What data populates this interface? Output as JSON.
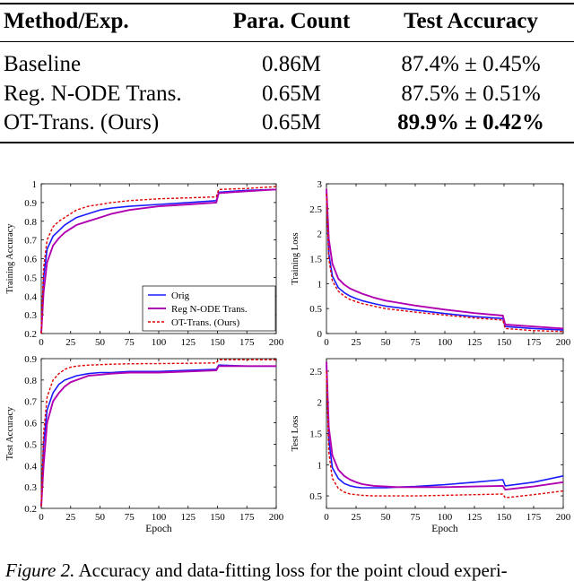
{
  "table": {
    "headers": [
      "Method/Exp.",
      "Para. Count",
      "Test Accuracy"
    ],
    "rows": [
      {
        "method": "Baseline",
        "params": "0.86M",
        "accuracy": "87.4% ± 0.45%",
        "bold": false
      },
      {
        "method": "Reg. N-ODE Trans.",
        "params": "0.65M",
        "accuracy": "87.5% ± 0.51%",
        "bold": false
      },
      {
        "method": "OT-Trans. (Ours)",
        "params": "0.65M",
        "accuracy": "89.9% ± 0.42%",
        "bold": true
      }
    ]
  },
  "caption": {
    "label": "Figure 2.",
    "text": " Accuracy and data-fitting loss for the point cloud experi-"
  },
  "colors": {
    "orig": "#1a1aff",
    "reg": "#b000b0",
    "ot": "#e00000"
  },
  "chart_data": [
    {
      "type": "line",
      "title": "",
      "xlabel": "",
      "ylabel": "Training Accuracy",
      "xlim": [
        0,
        200
      ],
      "ylim": [
        0.2,
        1
      ],
      "xticks": [
        "0",
        "25",
        "50",
        "75",
        "100",
        "125",
        "150",
        "175",
        "200"
      ],
      "yticks": [
        "0.2",
        "0.3",
        "0.4",
        "0.5",
        "0.6",
        "0.7",
        "0.8",
        "0.9",
        "1"
      ],
      "legend": {
        "position": "bottom-right",
        "entries": [
          "Orig",
          "Reg N-ODE Trans.",
          "OT-Trans. (Ours)"
        ]
      },
      "x": [
        0,
        2,
        5,
        10,
        15,
        20,
        25,
        30,
        40,
        50,
        60,
        75,
        100,
        125,
        149,
        151,
        175,
        200
      ],
      "series": [
        {
          "name": "Orig",
          "values": [
            0.2,
            0.5,
            0.65,
            0.72,
            0.75,
            0.78,
            0.8,
            0.82,
            0.84,
            0.86,
            0.87,
            0.88,
            0.89,
            0.9,
            0.91,
            0.955,
            0.965,
            0.97
          ]
        },
        {
          "name": "Reg N-ODE Trans.",
          "values": [
            0.2,
            0.42,
            0.58,
            0.67,
            0.71,
            0.74,
            0.76,
            0.78,
            0.8,
            0.82,
            0.84,
            0.86,
            0.88,
            0.89,
            0.9,
            0.95,
            0.96,
            0.97
          ]
        },
        {
          "name": "OT-Trans. (Ours)",
          "values": [
            0.2,
            0.55,
            0.7,
            0.77,
            0.8,
            0.82,
            0.84,
            0.86,
            0.88,
            0.89,
            0.9,
            0.91,
            0.92,
            0.925,
            0.93,
            0.97,
            0.975,
            0.985
          ]
        }
      ]
    },
    {
      "type": "line",
      "title": "",
      "xlabel": "",
      "ylabel": "Training Loss",
      "xlim": [
        0,
        200
      ],
      "ylim": [
        0,
        3
      ],
      "xticks": [
        "0",
        "25",
        "50",
        "75",
        "100",
        "125",
        "150",
        "175",
        "200"
      ],
      "yticks": [
        "0",
        "0.5",
        "1",
        "1.5",
        "2",
        "2.5",
        "3"
      ],
      "x": [
        0,
        2,
        5,
        10,
        15,
        20,
        25,
        30,
        40,
        50,
        60,
        75,
        100,
        125,
        149,
        151,
        175,
        200
      ],
      "series": [
        {
          "name": "Orig",
          "values": [
            2.85,
            1.6,
            1.15,
            0.92,
            0.82,
            0.75,
            0.7,
            0.66,
            0.6,
            0.55,
            0.52,
            0.47,
            0.4,
            0.34,
            0.3,
            0.14,
            0.1,
            0.07
          ]
        },
        {
          "name": "Reg N-ODE Trans.",
          "values": [
            2.9,
            1.9,
            1.4,
            1.1,
            0.98,
            0.9,
            0.85,
            0.8,
            0.72,
            0.66,
            0.62,
            0.56,
            0.48,
            0.41,
            0.36,
            0.18,
            0.14,
            0.1
          ]
        },
        {
          "name": "OT-Trans. (Ours)",
          "values": [
            2.8,
            1.5,
            1.05,
            0.85,
            0.75,
            0.68,
            0.64,
            0.6,
            0.55,
            0.5,
            0.47,
            0.43,
            0.37,
            0.31,
            0.27,
            0.1,
            0.06,
            0.04
          ]
        }
      ]
    },
    {
      "type": "line",
      "title": "",
      "xlabel": "Epoch",
      "ylabel": "Test Accuracy",
      "xlim": [
        0,
        200
      ],
      "ylim": [
        0.2,
        0.9
      ],
      "xticks": [
        "0",
        "25",
        "50",
        "75",
        "100",
        "125",
        "150",
        "175",
        "200"
      ],
      "yticks": [
        "0.2",
        "0.3",
        "0.4",
        "0.5",
        "0.6",
        "0.7",
        "0.8",
        "0.9"
      ],
      "x": [
        0,
        2,
        5,
        10,
        15,
        20,
        25,
        30,
        40,
        50,
        60,
        75,
        100,
        125,
        149,
        151,
        175,
        200
      ],
      "series": [
        {
          "name": "Orig",
          "values": [
            0.21,
            0.5,
            0.66,
            0.74,
            0.78,
            0.8,
            0.81,
            0.82,
            0.83,
            0.835,
            0.835,
            0.84,
            0.84,
            0.845,
            0.85,
            0.87,
            0.865,
            0.865
          ]
        },
        {
          "name": "Reg N-ODE Trans.",
          "values": [
            0.21,
            0.4,
            0.6,
            0.7,
            0.74,
            0.77,
            0.79,
            0.8,
            0.82,
            0.825,
            0.83,
            0.835,
            0.835,
            0.84,
            0.845,
            0.865,
            0.865,
            0.865
          ]
        },
        {
          "name": "OT-Trans. (Ours)",
          "values": [
            0.21,
            0.55,
            0.72,
            0.8,
            0.83,
            0.85,
            0.86,
            0.865,
            0.87,
            0.872,
            0.874,
            0.876,
            0.877,
            0.878,
            0.88,
            0.895,
            0.895,
            0.895
          ]
        }
      ]
    },
    {
      "type": "line",
      "title": "",
      "xlabel": "Epoch",
      "ylabel": "Test Loss",
      "xlim": [
        0,
        200
      ],
      "ylim": [
        0.3,
        2.7
      ],
      "xticks": [
        "0",
        "25",
        "50",
        "75",
        "100",
        "125",
        "150",
        "175",
        "200"
      ],
      "yticks": [
        "0.5",
        "1",
        "1.5",
        "2",
        "2.5"
      ],
      "x": [
        0,
        2,
        5,
        10,
        15,
        20,
        25,
        30,
        40,
        50,
        60,
        75,
        100,
        125,
        149,
        151,
        175,
        200
      ],
      "series": [
        {
          "name": "Orig",
          "values": [
            2.6,
            1.4,
            0.95,
            0.78,
            0.7,
            0.66,
            0.64,
            0.63,
            0.63,
            0.63,
            0.64,
            0.65,
            0.68,
            0.72,
            0.76,
            0.66,
            0.72,
            0.82
          ]
        },
        {
          "name": "Reg N-ODE Trans.",
          "values": [
            2.65,
            1.6,
            1.15,
            0.92,
            0.82,
            0.76,
            0.72,
            0.69,
            0.66,
            0.65,
            0.64,
            0.64,
            0.64,
            0.65,
            0.66,
            0.6,
            0.65,
            0.72
          ]
        },
        {
          "name": "OT-Trans. (Ours)",
          "values": [
            2.5,
            1.2,
            0.78,
            0.62,
            0.56,
            0.53,
            0.52,
            0.51,
            0.5,
            0.5,
            0.5,
            0.5,
            0.51,
            0.52,
            0.53,
            0.47,
            0.52,
            0.58
          ]
        }
      ]
    }
  ]
}
